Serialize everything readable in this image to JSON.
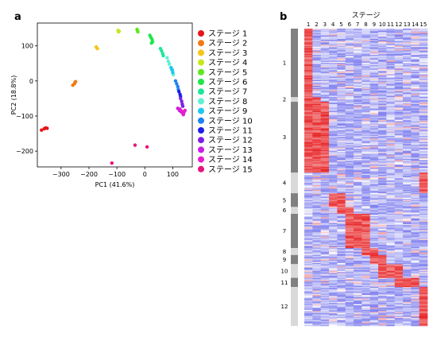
{
  "panels": {
    "a": "a",
    "b": "b"
  },
  "colors": {
    "stages": [
      "#e6141a",
      "#f07b14",
      "#f5c518",
      "#c8e61e",
      "#5fe61e",
      "#1ee64b",
      "#1ee69a",
      "#5ff0d2",
      "#1ec8f0",
      "#1e82f0",
      "#1e1ee6",
      "#7d1ee6",
      "#c81ee6",
      "#e61ecd",
      "#e6147d"
    ],
    "heatmap_high": "#e8282a",
    "heatmap_mid": "#ffffff",
    "heatmap_low": "#3c3ce6",
    "cluster_dark": "#808080",
    "cluster_light": "#d9d9d9"
  },
  "chart_data": [
    {
      "type": "scatter",
      "xlabel": "PC1 (41.6%)",
      "ylabel": "PC2 (18.8%)",
      "xlim": [
        -385,
        170
      ],
      "ylim": [
        -245,
        165
      ],
      "xticks": [
        -300,
        -200,
        -100,
        0,
        100
      ],
      "xtick_labels": [
        "−300",
        "−200",
        "−100",
        "0",
        "100"
      ],
      "yticks": [
        100,
        0,
        -100,
        -200
      ],
      "ytick_labels": [
        "100",
        "0",
        "−100",
        "−200"
      ],
      "legend_position": "right",
      "series": [
        {
          "name": "ステージ 1",
          "points": [
            [
              -370,
              -140
            ],
            [
              -360,
              -136
            ],
            [
              -355,
              -134
            ],
            [
              -350,
              -135
            ]
          ]
        },
        {
          "name": "ステージ 2",
          "points": [
            [
              -258,
              -12
            ],
            [
              -252,
              -8
            ],
            [
              -250,
              -4
            ],
            [
              -248,
              -2
            ]
          ]
        },
        {
          "name": "ステージ 3",
          "points": [
            [
              -174,
              97
            ],
            [
              -172,
              94
            ],
            [
              -170,
              92
            ]
          ]
        },
        {
          "name": "ステージ 4",
          "points": [
            [
              -96,
              144
            ],
            [
              -94,
              140
            ],
            [
              -92,
              142
            ]
          ]
        },
        {
          "name": "ステージ 5",
          "points": [
            [
              -28,
              147
            ],
            [
              -26,
              143
            ],
            [
              -25,
              140
            ]
          ]
        },
        {
          "name": "ステージ 6",
          "points": [
            [
              18,
              130
            ],
            [
              22,
              124
            ],
            [
              26,
              118
            ],
            [
              28,
              112
            ],
            [
              24,
              108
            ]
          ]
        },
        {
          "name": "ステージ 7",
          "points": [
            [
              56,
              92
            ],
            [
              60,
              86
            ],
            [
              64,
              78
            ],
            [
              66,
              72
            ]
          ]
        },
        {
          "name": "ステージ 8",
          "points": [
            [
              80,
              66
            ],
            [
              84,
              56
            ],
            [
              88,
              48
            ],
            [
              96,
              32
            ],
            [
              100,
              26
            ],
            [
              102,
              18
            ]
          ]
        },
        {
          "name": "ステージ 9",
          "points": [
            [
              94,
              38
            ],
            [
              98,
              32
            ],
            [
              100,
              24
            ]
          ]
        },
        {
          "name": "ステージ 10",
          "points": [
            [
              110,
              0
            ],
            [
              114,
              -8
            ],
            [
              118,
              -16
            ],
            [
              120,
              -24
            ]
          ]
        },
        {
          "name": "ステージ 11",
          "points": [
            [
              122,
              -30
            ],
            [
              126,
              -38
            ],
            [
              128,
              -44
            ]
          ]
        },
        {
          "name": "ステージ 12",
          "points": [
            [
              128,
              -50
            ],
            [
              132,
              -58
            ],
            [
              134,
              -66
            ],
            [
              136,
              -72
            ]
          ]
        },
        {
          "name": "ステージ 13",
          "points": [
            [
              118,
              -78
            ],
            [
              124,
              -84
            ],
            [
              130,
              -88
            ],
            [
              136,
              -92
            ]
          ]
        },
        {
          "name": "ステージ 14",
          "points": [
            [
              126,
              -80
            ],
            [
              132,
              -86
            ],
            [
              140,
              -90
            ],
            [
              144,
              -84
            ],
            [
              138,
              -96
            ]
          ]
        },
        {
          "name": "ステージ 15",
          "points": [
            [
              -35,
              -183
            ],
            [
              8,
              -188
            ],
            [
              -118,
              -234
            ]
          ]
        }
      ]
    },
    {
      "type": "heatmap",
      "title": "ステージ",
      "columns": [
        "1",
        "2",
        "3",
        "4",
        "5",
        "6",
        "7",
        "8",
        "9",
        "10",
        "11",
        "12",
        "13",
        "14",
        "15"
      ],
      "row_clusters": [
        {
          "label": "1",
          "rows": 60,
          "peak_cols": [
            0
          ]
        },
        {
          "label": "2",
          "rows": 4,
          "peak_cols": [
            0,
            1
          ]
        },
        {
          "label": "3",
          "rows": 62,
          "peak_cols": [
            0,
            1,
            2
          ]
        },
        {
          "label": "4",
          "rows": 18,
          "peak_cols": [
            14
          ]
        },
        {
          "label": "5",
          "rows": 12,
          "peak_cols": [
            3,
            4
          ]
        },
        {
          "label": "6",
          "rows": 6,
          "peak_cols": [
            4,
            5
          ]
        },
        {
          "label": "7",
          "rows": 30,
          "peak_cols": [
            5,
            6,
            7
          ]
        },
        {
          "label": "8",
          "rows": 6,
          "peak_cols": [
            7,
            8
          ]
        },
        {
          "label": "9",
          "rows": 8,
          "peak_cols": [
            8,
            9
          ]
        },
        {
          "label": "10",
          "rows": 12,
          "peak_cols": [
            9,
            10,
            11
          ]
        },
        {
          "label": "11",
          "rows": 8,
          "peak_cols": [
            11,
            12,
            13
          ]
        },
        {
          "label": "12",
          "rows": 34,
          "peak_cols": [
            14
          ]
        }
      ]
    }
  ]
}
